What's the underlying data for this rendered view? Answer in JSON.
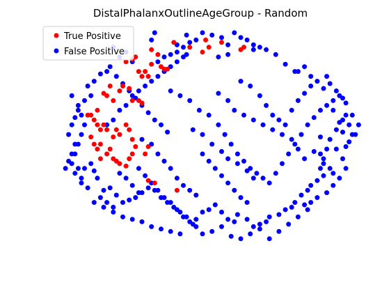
{
  "chart_data": {
    "type": "scatter",
    "title": "DistalPhalanxOutlineAgeGroup - Random",
    "xlabel": "",
    "ylabel": "",
    "xlim": [
      0,
      100
    ],
    "ylim": [
      0,
      100
    ],
    "axes_visible": false,
    "grid": false,
    "legend_position": "top-left",
    "series": [
      {
        "name": "True Positive",
        "color": "#ff0000",
        "points": [
          [
            26,
            86
          ],
          [
            28,
            87
          ],
          [
            32,
            82
          ],
          [
            34,
            91
          ],
          [
            36,
            89
          ],
          [
            41,
            94
          ],
          [
            46,
            92
          ],
          [
            50,
            90
          ],
          [
            51,
            95
          ],
          [
            52,
            92
          ],
          [
            56,
            94
          ],
          [
            62,
            91
          ],
          [
            63,
            92
          ],
          [
            30,
            82
          ],
          [
            31,
            80
          ],
          [
            33,
            80
          ],
          [
            34,
            85
          ],
          [
            37,
            84
          ],
          [
            38,
            83
          ],
          [
            39,
            83
          ],
          [
            29,
            88
          ],
          [
            19,
            73
          ],
          [
            20,
            72
          ],
          [
            21,
            76
          ],
          [
            22,
            70
          ],
          [
            24,
            74
          ],
          [
            25,
            76
          ],
          [
            27,
            75
          ],
          [
            28,
            70
          ],
          [
            30,
            70
          ],
          [
            31,
            69
          ],
          [
            14,
            64
          ],
          [
            15,
            64
          ],
          [
            16,
            62
          ],
          [
            17,
            66
          ],
          [
            17,
            60
          ],
          [
            18,
            58
          ],
          [
            19,
            60
          ],
          [
            20,
            58
          ],
          [
            22,
            55
          ],
          [
            23,
            58
          ],
          [
            24,
            56
          ],
          [
            26,
            60
          ],
          [
            27,
            58
          ],
          [
            28,
            54
          ],
          [
            29,
            51
          ],
          [
            32,
            48
          ],
          [
            33,
            51
          ],
          [
            15,
            55
          ],
          [
            16,
            52
          ],
          [
            17,
            50
          ],
          [
            18,
            52
          ],
          [
            20,
            48
          ],
          [
            22,
            46
          ],
          [
            23,
            45
          ],
          [
            24,
            44
          ],
          [
            26,
            43
          ],
          [
            27,
            46
          ],
          [
            28,
            48
          ],
          [
            33,
            37
          ],
          [
            35,
            36
          ],
          [
            42,
            33
          ],
          [
            18,
            46
          ],
          [
            21,
            50
          ]
        ]
      },
      {
        "name": "False Positive",
        "color": "#0000ff",
        "points": [
          [
            35,
            98
          ],
          [
            34,
            95
          ],
          [
            45,
            97
          ],
          [
            42,
            93
          ],
          [
            45,
            89
          ],
          [
            55,
            88
          ],
          [
            58,
            93
          ],
          [
            58,
            89
          ],
          [
            66,
            91
          ],
          [
            68,
            92
          ],
          [
            70,
            91
          ],
          [
            73,
            89
          ],
          [
            76,
            85
          ],
          [
            79,
            82
          ],
          [
            80,
            82
          ],
          [
            82,
            84
          ],
          [
            84,
            80
          ],
          [
            88,
            75
          ],
          [
            89,
            80
          ],
          [
            90,
            77
          ],
          [
            92,
            74
          ],
          [
            94,
            71
          ],
          [
            95,
            69
          ],
          [
            97,
            64
          ],
          [
            99,
            60
          ],
          [
            98,
            56
          ],
          [
            96,
            53
          ],
          [
            95,
            51
          ],
          [
            94,
            57
          ],
          [
            93,
            61
          ],
          [
            91,
            66
          ],
          [
            87,
            55
          ],
          [
            85,
            49
          ],
          [
            87,
            48
          ],
          [
            88,
            44
          ],
          [
            87,
            42
          ],
          [
            88,
            39
          ],
          [
            86,
            37
          ],
          [
            84,
            35
          ],
          [
            83,
            33
          ],
          [
            81,
            31
          ],
          [
            79,
            28
          ],
          [
            78,
            26
          ],
          [
            76,
            25
          ],
          [
            74,
            23
          ],
          [
            71,
            22
          ],
          [
            70,
            20
          ],
          [
            68,
            19
          ],
          [
            66,
            18
          ],
          [
            64,
            21
          ],
          [
            61,
            23
          ],
          [
            60,
            20
          ],
          [
            58,
            21
          ],
          [
            56,
            24
          ],
          [
            54,
            27
          ],
          [
            52,
            25
          ],
          [
            50,
            24
          ],
          [
            48,
            21
          ],
          [
            47,
            19
          ],
          [
            45,
            22
          ],
          [
            43,
            24
          ],
          [
            41,
            26
          ],
          [
            39,
            28
          ],
          [
            37,
            30
          ],
          [
            35,
            33
          ],
          [
            33,
            34
          ],
          [
            31,
            32
          ],
          [
            29,
            30
          ],
          [
            27,
            29
          ],
          [
            25,
            28
          ],
          [
            23,
            31
          ],
          [
            21,
            34
          ],
          [
            19,
            33
          ],
          [
            17,
            38
          ],
          [
            16,
            41
          ],
          [
            15,
            44
          ],
          [
            13,
            42
          ],
          [
            12,
            38
          ],
          [
            11,
            42
          ],
          [
            7,
            42
          ],
          [
            8,
            45
          ],
          [
            9,
            48
          ],
          [
            10,
            52
          ],
          [
            8,
            56
          ],
          [
            9,
            60
          ],
          [
            10,
            63
          ],
          [
            11,
            66
          ],
          [
            13,
            70
          ],
          [
            15,
            72
          ],
          [
            14,
            76
          ],
          [
            16,
            78
          ],
          [
            18,
            81
          ],
          [
            21,
            84
          ],
          [
            24,
            88
          ],
          [
            22,
            92
          ],
          [
            26,
            90
          ],
          [
            28,
            86
          ],
          [
            20,
            60
          ],
          [
            22,
            62
          ],
          [
            24,
            66
          ],
          [
            26,
            68
          ],
          [
            28,
            72
          ],
          [
            30,
            74
          ],
          [
            32,
            76
          ],
          [
            34,
            78
          ],
          [
            36,
            80
          ],
          [
            38,
            82
          ],
          [
            40,
            84
          ],
          [
            42,
            86
          ],
          [
            44,
            88
          ],
          [
            40,
            74
          ],
          [
            43,
            72
          ],
          [
            46,
            70
          ],
          [
            49,
            66
          ],
          [
            52,
            64
          ],
          [
            55,
            60
          ],
          [
            57,
            56
          ],
          [
            59,
            52
          ],
          [
            61,
            48
          ],
          [
            63,
            45
          ],
          [
            65,
            42
          ],
          [
            67,
            40
          ],
          [
            69,
            38
          ],
          [
            71,
            36
          ],
          [
            73,
            40
          ],
          [
            75,
            44
          ],
          [
            77,
            48
          ],
          [
            79,
            52
          ],
          [
            81,
            56
          ],
          [
            83,
            60
          ],
          [
            85,
            63
          ],
          [
            87,
            66
          ],
          [
            89,
            68
          ],
          [
            91,
            70
          ],
          [
            93,
            72
          ],
          [
            55,
            73
          ],
          [
            58,
            70
          ],
          [
            60,
            66
          ],
          [
            63,
            64
          ],
          [
            66,
            62
          ],
          [
            69,
            60
          ],
          [
            72,
            58
          ],
          [
            75,
            56
          ],
          [
            78,
            54
          ],
          [
            80,
            50
          ],
          [
            82,
            46
          ],
          [
            47,
            58
          ],
          [
            50,
            56
          ],
          [
            53,
            52
          ],
          [
            56,
            49
          ],
          [
            58,
            46
          ],
          [
            61,
            44
          ],
          [
            64,
            41
          ],
          [
            66,
            38
          ],
          [
            31,
            54
          ],
          [
            34,
            52
          ],
          [
            36,
            48
          ],
          [
            38,
            45
          ],
          [
            40,
            42
          ],
          [
            42,
            38
          ],
          [
            44,
            35
          ],
          [
            46,
            33
          ],
          [
            48,
            31
          ],
          [
            30,
            42
          ],
          [
            32,
            39
          ],
          [
            34,
            36
          ],
          [
            36,
            33
          ],
          [
            38,
            30
          ],
          [
            40,
            28
          ],
          [
            42,
            25
          ],
          [
            44,
            22
          ],
          [
            46,
            20
          ],
          [
            48,
            18
          ],
          [
            50,
            15
          ],
          [
            53,
            16
          ],
          [
            56,
            18
          ],
          [
            59,
            14
          ],
          [
            62,
            13
          ],
          [
            65,
            15
          ],
          [
            68,
            17
          ],
          [
            71,
            13
          ],
          [
            74,
            16
          ],
          [
            77,
            19
          ],
          [
            80,
            22
          ],
          [
            83,
            25
          ],
          [
            9,
            72
          ],
          [
            11,
            68
          ],
          [
            12,
            64
          ],
          [
            13,
            60
          ],
          [
            12,
            56
          ],
          [
            11,
            52
          ],
          [
            10,
            48
          ],
          [
            9,
            44
          ],
          [
            10,
            40
          ],
          [
            12,
            36
          ],
          [
            14,
            34
          ],
          [
            16,
            28
          ],
          [
            19,
            26
          ],
          [
            22,
            24
          ],
          [
            25,
            22
          ],
          [
            28,
            21
          ],
          [
            31,
            20
          ],
          [
            34,
            18
          ],
          [
            37,
            17
          ],
          [
            40,
            16
          ],
          [
            43,
            15
          ],
          [
            92,
            50
          ],
          [
            94,
            46
          ],
          [
            95,
            42
          ],
          [
            93,
            38
          ],
          [
            91,
            35
          ],
          [
            89,
            32
          ],
          [
            86,
            30
          ],
          [
            84,
            28
          ],
          [
            82,
            27
          ],
          [
            95,
            64
          ],
          [
            96,
            60
          ],
          [
            97,
            56
          ],
          [
            94,
            62
          ],
          [
            92,
            58
          ],
          [
            90,
            54
          ],
          [
            89,
            50
          ],
          [
            88,
            46
          ],
          [
            90,
            42
          ],
          [
            91,
            40
          ],
          [
            20,
            82
          ],
          [
            23,
            80
          ],
          [
            25,
            77
          ],
          [
            27,
            74
          ],
          [
            29,
            71
          ],
          [
            31,
            68
          ],
          [
            33,
            65
          ],
          [
            35,
            62
          ],
          [
            37,
            60
          ],
          [
            39,
            57
          ],
          [
            62,
            78
          ],
          [
            65,
            76
          ],
          [
            68,
            72
          ],
          [
            70,
            68
          ],
          [
            72,
            64
          ],
          [
            74,
            62
          ],
          [
            76,
            60
          ],
          [
            78,
            66
          ],
          [
            80,
            70
          ],
          [
            82,
            73
          ],
          [
            84,
            76
          ],
          [
            86,
            78
          ],
          [
            50,
            48
          ],
          [
            52,
            45
          ],
          [
            54,
            42
          ],
          [
            56,
            39
          ],
          [
            58,
            36
          ],
          [
            60,
            33
          ],
          [
            62,
            30
          ],
          [
            64,
            28
          ],
          [
            24,
            40
          ],
          [
            26,
            38
          ],
          [
            28,
            35
          ],
          [
            30,
            32
          ],
          [
            18,
            30
          ],
          [
            20,
            28
          ],
          [
            22,
            26
          ],
          [
            60,
            98
          ],
          [
            62,
            96
          ],
          [
            64,
            95
          ],
          [
            66,
            93
          ],
          [
            56,
            96
          ],
          [
            53,
            97
          ],
          [
            50,
            98
          ],
          [
            48,
            95
          ],
          [
            46,
            94
          ],
          [
            44,
            92
          ],
          [
            42,
            90
          ],
          [
            40,
            89
          ],
          [
            38,
            88
          ],
          [
            36,
            86
          ]
        ]
      }
    ]
  }
}
